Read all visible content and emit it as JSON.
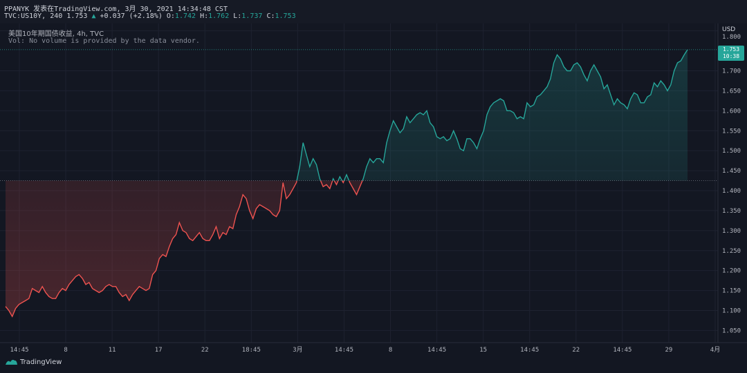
{
  "header": {
    "publish_line": "PPANYK 发表在TradingView.com, 3月 30, 2021 14:34:48 CST",
    "symbol": "TVC:US10Y, 240",
    "last": "1.753",
    "change": "+0.037 (+2.18%)",
    "o_label": "O:",
    "o_value": "1.742",
    "h_label": "H:",
    "h_value": "1.762",
    "l_label": "L:",
    "l_value": "1.737",
    "c_label": "C:",
    "c_value": "1.753"
  },
  "legend": {
    "title": "美国10年期国债收益, 4h, TVC",
    "volume_note": "Vol: No volume is provided by the data vendor."
  },
  "price_scale": {
    "currency": "USD",
    "current_price": "1.753",
    "countdown": "10:38"
  },
  "footer": {
    "logo_text": "TradingView"
  },
  "colors": {
    "background": "#131722",
    "up": "#26a69a",
    "down": "#ef5350",
    "grid": "#1e2230"
  },
  "chart_data": {
    "type": "area",
    "x_tick_labels": [
      "14:45",
      "8",
      "11",
      "17",
      "22",
      "18:45",
      "3月",
      "14:45",
      "8",
      "14:45",
      "15",
      "14:45",
      "22",
      "14:45",
      "29",
      "4月"
    ],
    "y_tick_labels": [
      "1.050",
      "1.100",
      "1.150",
      "1.200",
      "1.250",
      "1.300",
      "1.350",
      "1.400",
      "1.450",
      "1.500",
      "1.550",
      "1.600",
      "1.650",
      "1.700",
      "1.800"
    ],
    "ylim": [
      1.03,
      1.815
    ],
    "baseline": 1.425,
    "grid": true,
    "y_axis_position": "right",
    "series": [
      {
        "values": [
          1.11,
          1.1,
          1.085,
          1.105,
          1.115,
          1.12,
          1.125,
          1.13,
          1.155,
          1.15,
          1.145,
          1.16,
          1.145,
          1.135,
          1.13,
          1.13,
          1.145,
          1.155,
          1.15,
          1.165,
          1.175,
          1.185,
          1.19,
          1.18,
          1.165,
          1.17,
          1.155,
          1.15,
          1.145,
          1.15,
          1.16,
          1.165,
          1.16,
          1.16,
          1.145,
          1.135,
          1.14,
          1.125,
          1.14,
          1.15,
          1.16,
          1.155,
          1.15,
          1.155,
          1.19,
          1.2,
          1.23,
          1.24,
          1.235,
          1.26,
          1.28,
          1.29,
          1.32,
          1.3,
          1.295,
          1.28,
          1.275,
          1.285,
          1.295,
          1.28,
          1.275,
          1.275,
          1.29,
          1.31,
          1.28,
          1.295,
          1.29,
          1.31,
          1.305,
          1.34,
          1.36,
          1.39,
          1.38,
          1.35,
          1.33,
          1.355,
          1.365,
          1.36,
          1.355,
          1.35,
          1.34,
          1.335,
          1.35,
          1.42,
          1.38,
          1.39,
          1.405,
          1.42,
          1.46,
          1.52,
          1.49,
          1.46,
          1.48,
          1.465,
          1.43,
          1.41,
          1.415,
          1.405,
          1.43,
          1.415,
          1.435,
          1.42,
          1.44,
          1.42,
          1.405,
          1.39,
          1.41,
          1.43,
          1.46,
          1.48,
          1.47,
          1.48,
          1.48,
          1.47,
          1.52,
          1.55,
          1.575,
          1.56,
          1.545,
          1.555,
          1.585,
          1.57,
          1.58,
          1.59,
          1.595,
          1.59,
          1.6,
          1.57,
          1.56,
          1.535,
          1.53,
          1.535,
          1.525,
          1.53,
          1.55,
          1.53,
          1.505,
          1.5,
          1.53,
          1.53,
          1.52,
          1.505,
          1.53,
          1.55,
          1.59,
          1.61,
          1.62,
          1.625,
          1.63,
          1.625,
          1.6,
          1.6,
          1.595,
          1.58,
          1.585,
          1.58,
          1.62,
          1.61,
          1.615,
          1.635,
          1.64,
          1.65,
          1.66,
          1.68,
          1.72,
          1.74,
          1.73,
          1.71,
          1.7,
          1.7,
          1.715,
          1.72,
          1.71,
          1.69,
          1.675,
          1.7,
          1.715,
          1.7,
          1.685,
          1.655,
          1.665,
          1.64,
          1.615,
          1.63,
          1.62,
          1.615,
          1.605,
          1.63,
          1.645,
          1.64,
          1.62,
          1.62,
          1.635,
          1.64,
          1.67,
          1.66,
          1.675,
          1.665,
          1.65,
          1.665,
          1.7,
          1.72,
          1.725,
          1.74,
          1.753
        ]
      }
    ]
  }
}
